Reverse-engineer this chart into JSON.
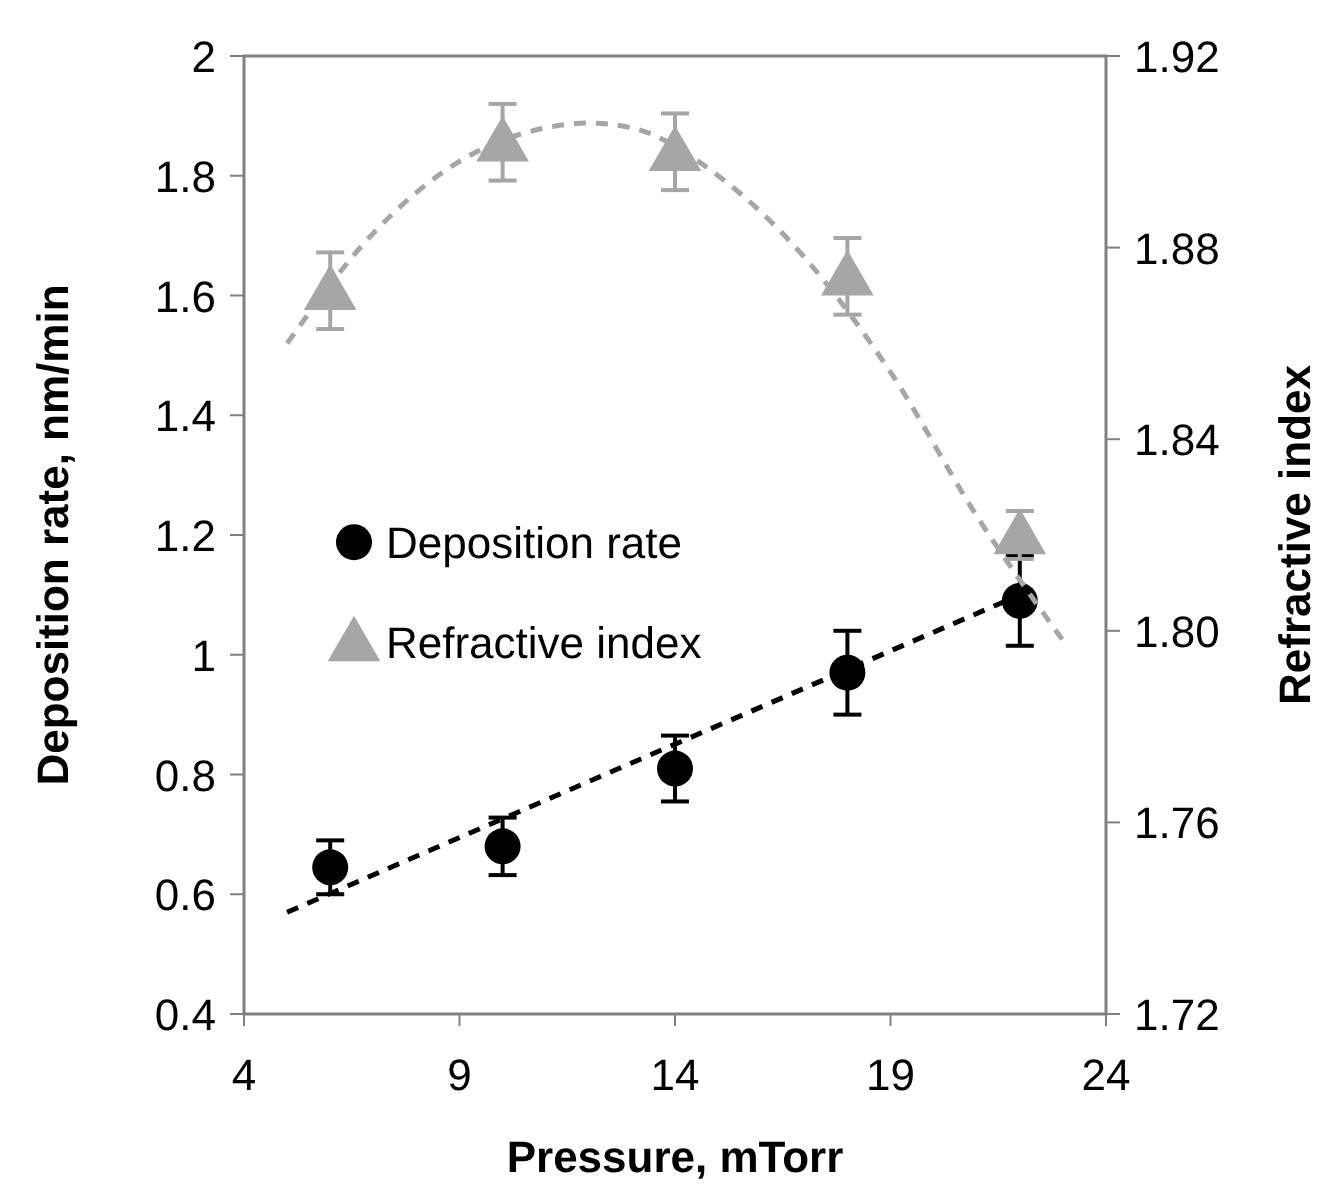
{
  "chart_data": {
    "type": "scatter",
    "xlabel": "Pressure, mTorr",
    "ylabel": "Deposition rate, nm/min",
    "y2label": "Refractive index",
    "xlim": [
      4,
      24
    ],
    "xticks": [
      4,
      9,
      14,
      19,
      24
    ],
    "ylim": [
      0.4,
      2
    ],
    "yticks": [
      0.4,
      0.6,
      0.8,
      1,
      1.2,
      1.4,
      1.6,
      1.8,
      2
    ],
    "y2lim": [
      1.72,
      1.92
    ],
    "y2ticks": [
      {
        "value": 1.72,
        "label": "1.72"
      },
      {
        "value": 1.76,
        "label": "1.76"
      },
      {
        "value": 1.8,
        "label": "1.80"
      },
      {
        "value": 1.84,
        "label": "1.84"
      },
      {
        "value": 1.88,
        "label": "1.88"
      },
      {
        "value": 1.92,
        "label": "1.92"
      }
    ],
    "grid": false,
    "legend": "left",
    "series": [
      {
        "name": "Deposition rate",
        "color": "#000000",
        "marker": "circle",
        "x": [
          6,
          10,
          14,
          18,
          22
        ],
        "values": [
          0.645,
          0.68,
          0.81,
          0.97,
          1.09
        ],
        "errors": [
          0.045,
          0.048,
          0.055,
          0.07,
          0.075
        ]
      },
      {
        "name": "Refractive index",
        "color": "#a6a6a6",
        "marker": "triangle",
        "axis": "y2",
        "x": [
          6,
          10,
          14,
          18,
          22
        ],
        "values": [
          1.871,
          1.902,
          1.9,
          1.874,
          1.82
        ],
        "errors": [
          0.008,
          0.008,
          0.008,
          0.008,
          0.005
        ]
      },
      {
        "type": "line",
        "color": "#000000",
        "line_style": "dashed",
        "marker": "none",
        "x": [
          5,
          22
        ],
        "values": [
          0.57,
          1.1
        ]
      },
      {
        "type": "line",
        "color": "#a6a6a6",
        "line_style": "dashed",
        "marker": "none",
        "axis": "y2",
        "x": [
          5,
          7,
          9,
          11,
          12,
          13,
          15,
          17,
          19,
          21,
          23
        ],
        "values": [
          1.86,
          1.883,
          1.898,
          1.905,
          1.906,
          1.905,
          1.895,
          1.878,
          1.854,
          1.824,
          1.798
        ]
      }
    ]
  }
}
